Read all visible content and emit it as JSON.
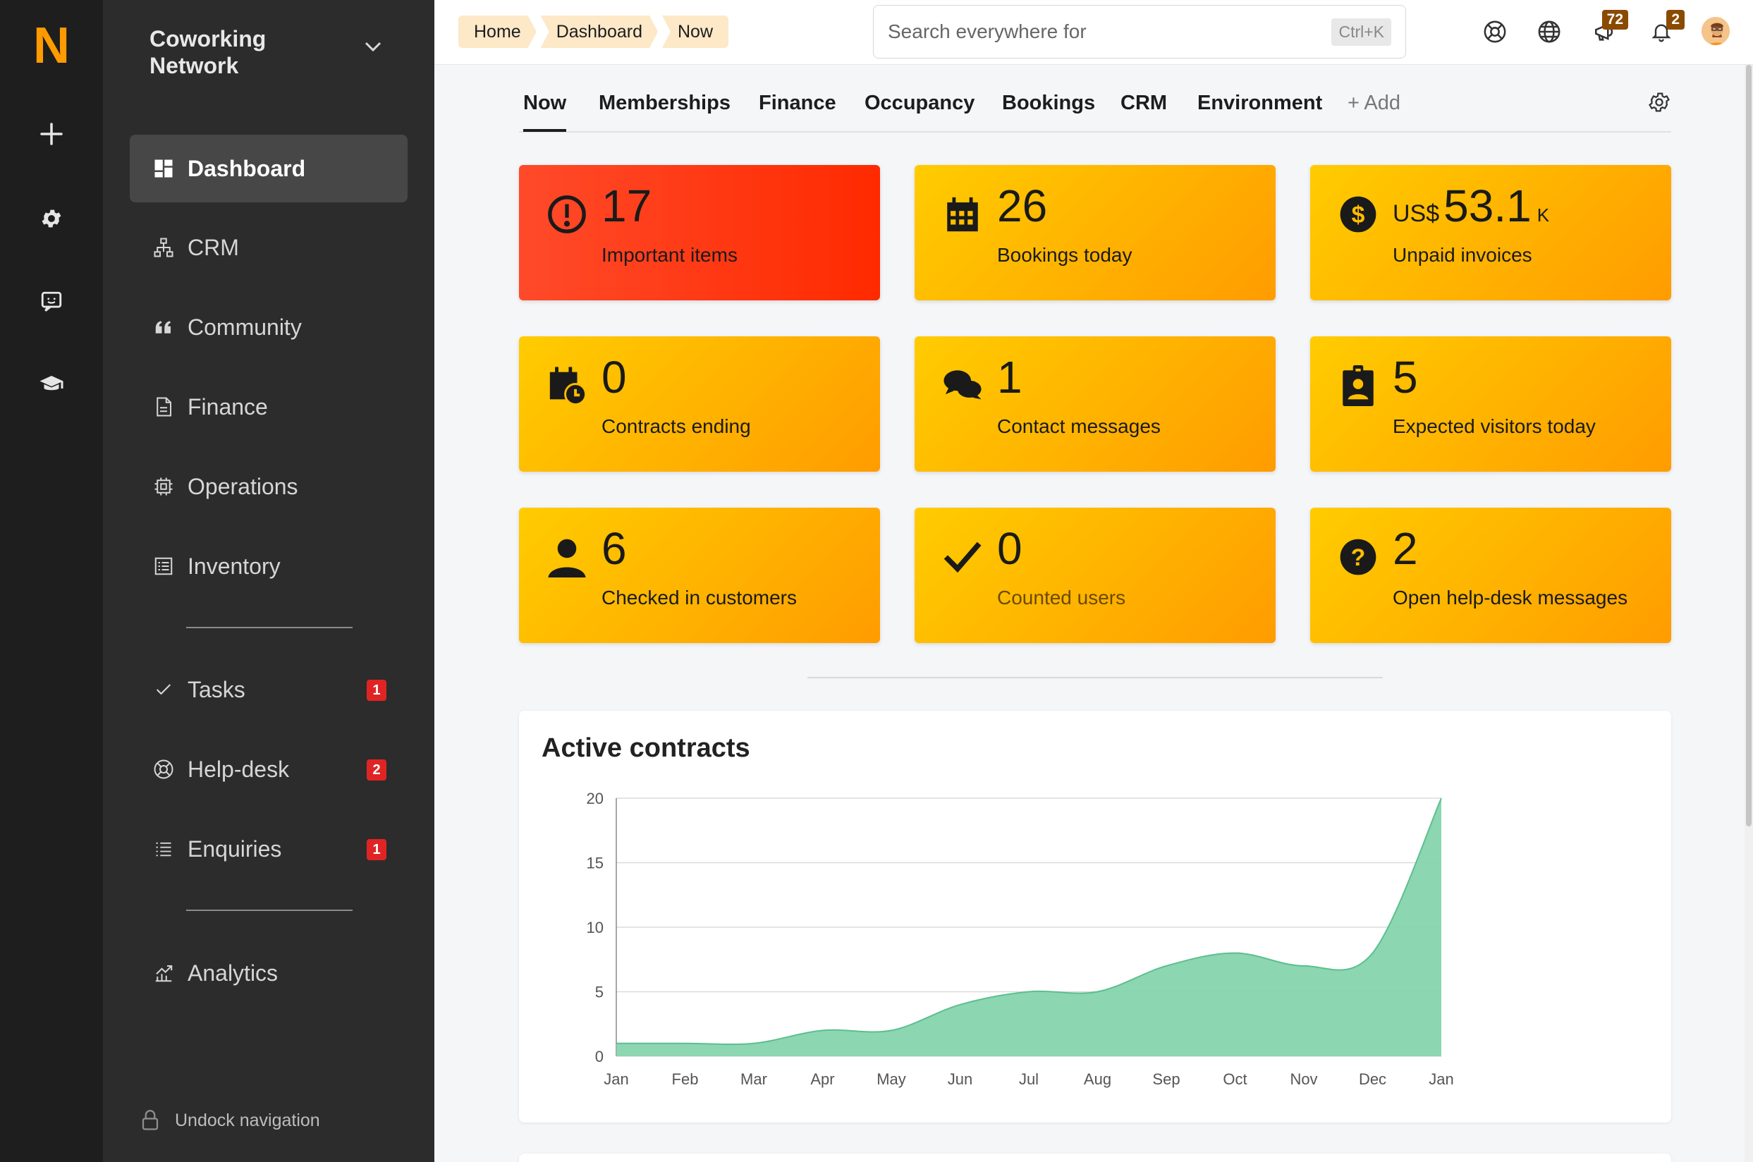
{
  "rail": {
    "logo": "N",
    "icons": [
      "plus-icon",
      "gear-icon",
      "chat-icon",
      "graduation-cap-icon"
    ]
  },
  "sidebar": {
    "org_name": "Coworking Network",
    "items": [
      {
        "label": "Dashboard",
        "icon": "dashboard-icon",
        "active": true
      },
      {
        "label": "CRM",
        "icon": "hierarchy-icon"
      },
      {
        "label": "Community",
        "icon": "quote-icon"
      },
      {
        "label": "Finance",
        "icon": "document-icon"
      },
      {
        "label": "Operations",
        "icon": "chip-icon"
      },
      {
        "label": "Inventory",
        "icon": "list-box-icon"
      },
      {
        "label": "Tasks",
        "icon": "check-icon",
        "badge": "1"
      },
      {
        "label": "Help-desk",
        "icon": "lifebuoy-icon",
        "badge": "2"
      },
      {
        "label": "Enquiries",
        "icon": "list-icon",
        "badge": "1"
      },
      {
        "label": "Analytics",
        "icon": "chart-up-icon"
      }
    ],
    "undock_label": "Undock navigation"
  },
  "topbar": {
    "breadcrumbs": [
      "Home",
      "Dashboard",
      "Now"
    ],
    "search_placeholder": "Search everywhere for",
    "search_shortcut": "Ctrl+K",
    "announcements_count": "72",
    "notifications_count": "2"
  },
  "tabs": [
    {
      "label": "Now",
      "active": true
    },
    {
      "label": "Memberships"
    },
    {
      "label": "Finance"
    },
    {
      "label": "Occupancy"
    },
    {
      "label": "Bookings"
    },
    {
      "label": "CRM"
    },
    {
      "label": "Environment"
    },
    {
      "label": "+ Add"
    }
  ],
  "cards": [
    {
      "value": "17",
      "label": "Important items",
      "icon": "exclamation-circle-icon",
      "color": "#ff3a14"
    },
    {
      "value": "26",
      "label": "Bookings today",
      "icon": "calendar-icon",
      "color": "#ffb300"
    },
    {
      "prefix": "US$",
      "value": "53.1",
      "suffix": "K",
      "label": "Unpaid invoices",
      "icon": "dollar-circle-icon",
      "color": "#ffb300"
    },
    {
      "value": "0",
      "label": "Contracts ending",
      "icon": "calendar-clock-icon",
      "color": "#ffb300"
    },
    {
      "value": "1",
      "label": "Contact messages",
      "icon": "speech-bubbles-icon",
      "color": "#ffb300"
    },
    {
      "value": "5",
      "label": "Expected visitors today",
      "icon": "badge-icon",
      "color": "#ffb300"
    },
    {
      "value": "6",
      "label": "Checked in customers",
      "icon": "person-icon",
      "color": "#ffb300"
    },
    {
      "value": "0",
      "label": "Counted users",
      "icon": "checkmark-icon",
      "color": "#ffb300"
    },
    {
      "value": "2",
      "label": "Open help-desk messages",
      "icon": "question-circle-icon",
      "color": "#ffb300"
    }
  ],
  "chart_data": {
    "type": "area",
    "title": "Active contracts",
    "x": [
      "Jan",
      "Feb",
      "Mar",
      "Apr",
      "May",
      "Jun",
      "Jul",
      "Aug",
      "Sep",
      "Oct",
      "Nov",
      "Dec",
      "Jan"
    ],
    "values": [
      1,
      1,
      1,
      2,
      2,
      4,
      5,
      5,
      7,
      8,
      7,
      8,
      20
    ],
    "ylim": [
      0,
      20
    ],
    "yticks": [
      0,
      5,
      10,
      15,
      20
    ],
    "grid": true,
    "color": "#7fd1a9"
  }
}
